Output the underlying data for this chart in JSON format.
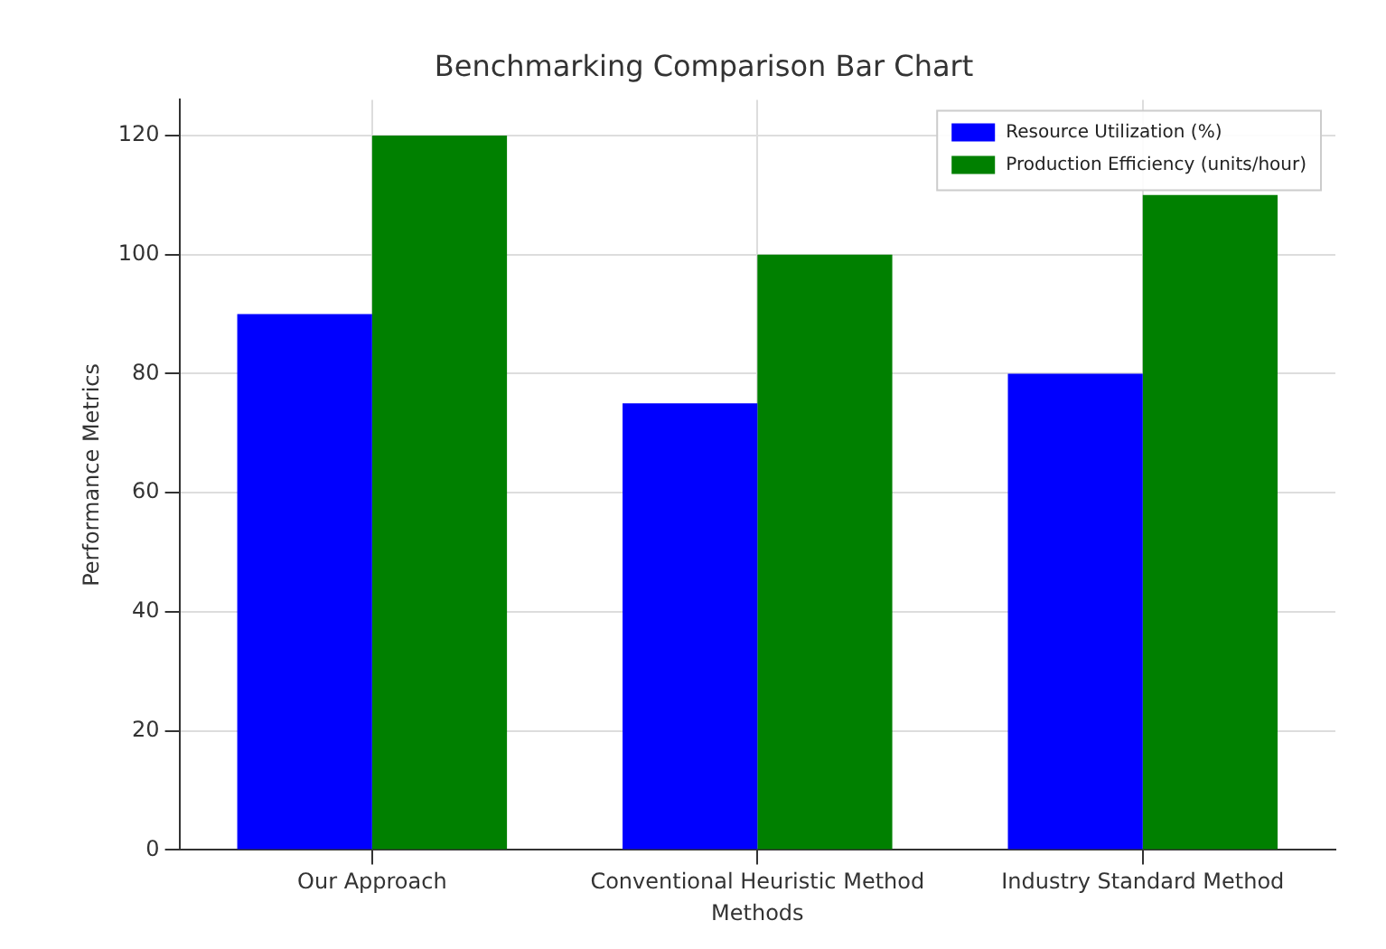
{
  "chart_data": {
    "type": "bar",
    "title": "Benchmarking Comparison Bar Chart",
    "xlabel": "Methods",
    "ylabel": "Performance Metrics",
    "categories": [
      "Our Approach",
      "Conventional Heuristic Method",
      "Industry Standard Method"
    ],
    "series": [
      {
        "name": "Resource Utilization (%)",
        "color": "#0000ff",
        "values": [
          90,
          75,
          80
        ]
      },
      {
        "name": "Production Efficiency (units/hour)",
        "color": "#008000",
        "values": [
          120,
          100,
          110
        ]
      }
    ],
    "ylim": [
      0,
      126
    ],
    "yticks": [
      0,
      20,
      40,
      60,
      80,
      100,
      120
    ],
    "grid": true,
    "legend": "top right"
  }
}
